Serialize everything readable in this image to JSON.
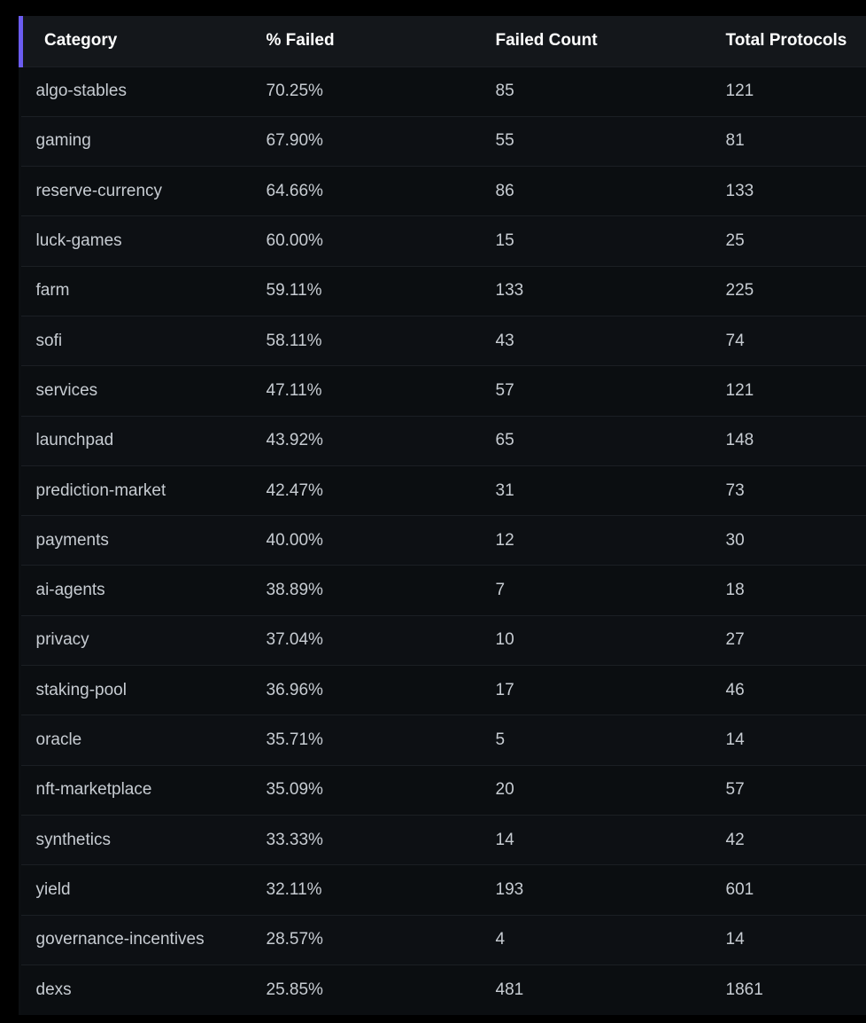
{
  "table": {
    "headers": [
      "Category",
      "% Failed",
      "Failed Count",
      "Total Protocols"
    ],
    "rows": [
      [
        "algo-stables",
        "70.25%",
        "85",
        "121"
      ],
      [
        "gaming",
        "67.90%",
        "55",
        "81"
      ],
      [
        "reserve-currency",
        "64.66%",
        "86",
        "133"
      ],
      [
        "luck-games",
        "60.00%",
        "15",
        "25"
      ],
      [
        "farm",
        "59.11%",
        "133",
        "225"
      ],
      [
        "sofi",
        "58.11%",
        "43",
        "74"
      ],
      [
        "services",
        "47.11%",
        "57",
        "121"
      ],
      [
        "launchpad",
        "43.92%",
        "65",
        "148"
      ],
      [
        "prediction-market",
        "42.47%",
        "31",
        "73"
      ],
      [
        "payments",
        "40.00%",
        "12",
        "30"
      ],
      [
        "ai-agents",
        "38.89%",
        "7",
        "18"
      ],
      [
        "privacy",
        "37.04%",
        "10",
        "27"
      ],
      [
        "staking-pool",
        "36.96%",
        "17",
        "46"
      ],
      [
        "oracle",
        "35.71%",
        "5",
        "14"
      ],
      [
        "nft-marketplace",
        "35.09%",
        "20",
        "57"
      ],
      [
        "synthetics",
        "33.33%",
        "14",
        "42"
      ],
      [
        "yield",
        "32.11%",
        "193",
        "601"
      ],
      [
        "governance-incentives",
        "28.57%",
        "4",
        "14"
      ],
      [
        "dexs",
        "25.85%",
        "481",
        "1861"
      ]
    ]
  },
  "colors": {
    "background": "#000000",
    "table_background": "#0c0f12",
    "header_background": "#14171b",
    "header_accent": "#6b5cf0",
    "header_text": "#ffffff",
    "cell_text": "#c7ccd2"
  }
}
